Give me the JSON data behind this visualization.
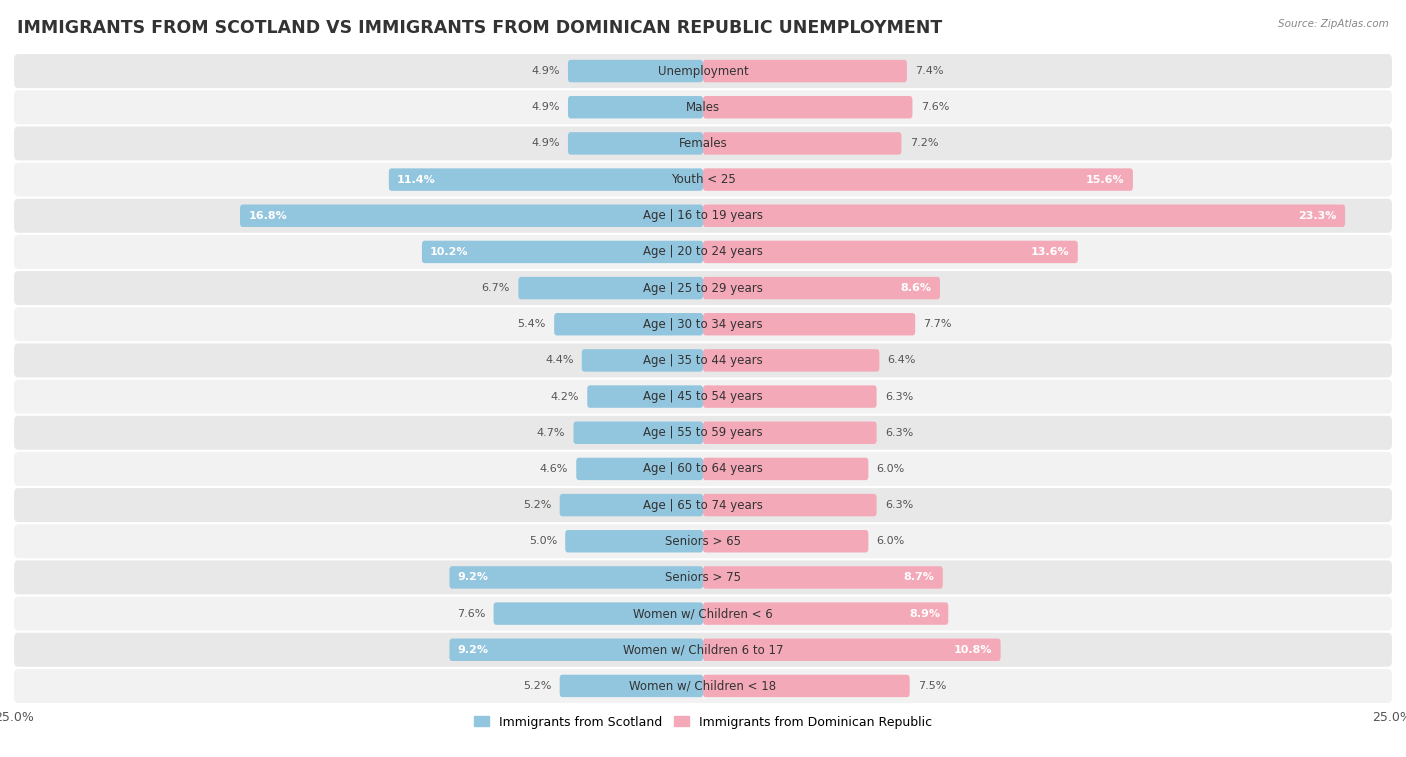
{
  "title": "IMMIGRANTS FROM SCOTLAND VS IMMIGRANTS FROM DOMINICAN REPUBLIC UNEMPLOYMENT",
  "source": "Source: ZipAtlas.com",
  "categories": [
    "Unemployment",
    "Males",
    "Females",
    "Youth < 25",
    "Age | 16 to 19 years",
    "Age | 20 to 24 years",
    "Age | 25 to 29 years",
    "Age | 30 to 34 years",
    "Age | 35 to 44 years",
    "Age | 45 to 54 years",
    "Age | 55 to 59 years",
    "Age | 60 to 64 years",
    "Age | 65 to 74 years",
    "Seniors > 65",
    "Seniors > 75",
    "Women w/ Children < 6",
    "Women w/ Children 6 to 17",
    "Women w/ Children < 18"
  ],
  "scotland_values": [
    4.9,
    4.9,
    4.9,
    11.4,
    16.8,
    10.2,
    6.7,
    5.4,
    4.4,
    4.2,
    4.7,
    4.6,
    5.2,
    5.0,
    9.2,
    7.6,
    9.2,
    5.2
  ],
  "dominican_values": [
    7.4,
    7.6,
    7.2,
    15.6,
    23.3,
    13.6,
    8.6,
    7.7,
    6.4,
    6.3,
    6.3,
    6.0,
    6.3,
    6.0,
    8.7,
    8.9,
    10.8,
    7.5
  ],
  "scotland_color": "#92C5DE",
  "dominican_color": "#F4A9B8",
  "scotland_label": "Immigrants from Scotland",
  "dominican_label": "Immigrants from Dominican Republic",
  "xlim": 25.0,
  "row_colors": [
    "#e8e8e8",
    "#f2f2f2"
  ],
  "bar_height": 0.62,
  "title_fontsize": 12.5,
  "label_fontsize": 8.5,
  "value_fontsize": 8.0,
  "white_text_threshold": 8.0
}
